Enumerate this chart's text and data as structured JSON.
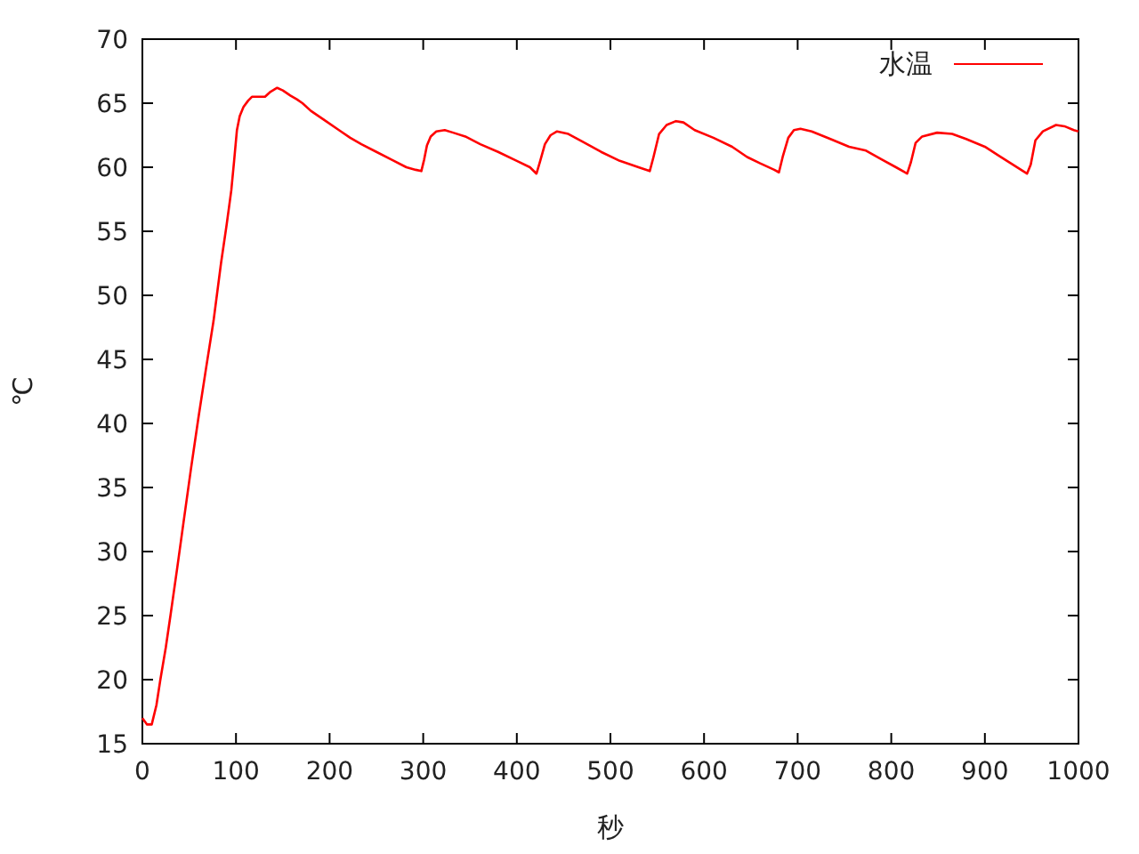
{
  "chart_data": {
    "type": "line",
    "xlabel": "秒",
    "ylabel": "℃",
    "xlim": [
      0,
      1000
    ],
    "ylim": [
      15,
      70
    ],
    "xticks": [
      0,
      100,
      200,
      300,
      400,
      500,
      600,
      700,
      800,
      900,
      1000
    ],
    "yticks": [
      15,
      20,
      25,
      30,
      35,
      40,
      45,
      50,
      55,
      60,
      65,
      70
    ],
    "legend": "top right",
    "grid": false,
    "series": [
      {
        "name": "水温",
        "color": "#ff0000",
        "x": [
          0,
          5,
          10,
          15,
          19,
          25,
          30,
          37,
          44,
          52,
          60,
          68,
          76,
          84,
          90,
          95,
          98,
          101,
          104,
          108,
          113,
          117,
          124,
          131,
          137,
          144,
          150,
          158,
          165,
          171,
          180,
          188,
          196,
          210,
          222,
          234,
          250,
          266,
          282,
          292,
          298,
          301,
          304,
          308,
          314,
          323,
          332,
          345,
          361,
          380,
          400,
          414,
          421,
          425,
          430,
          436,
          443,
          455,
          470,
          490,
          510,
          530,
          542,
          546,
          552,
          560,
          570,
          578,
          590,
          610,
          630,
          646,
          660,
          675,
          680,
          684,
          690,
          696,
          703,
          715,
          735,
          755,
          773,
          790,
          805,
          817,
          821,
          826,
          833,
          849,
          865,
          880,
          900,
          915,
          930,
          945,
          949,
          954,
          962,
          976,
          985,
          995,
          1000
        ],
        "values": [
          17.0,
          16.5,
          16.5,
          18.0,
          19.9,
          22.5,
          25.0,
          28.6,
          32.3,
          36.5,
          40.5,
          44.3,
          48.0,
          52.5,
          55.5,
          58.2,
          60.5,
          62.9,
          64.0,
          64.7,
          65.2,
          65.5,
          65.5,
          65.5,
          65.9,
          66.2,
          66.0,
          65.6,
          65.3,
          65.0,
          64.4,
          64.0,
          63.6,
          62.9,
          62.3,
          61.8,
          61.2,
          60.6,
          60.0,
          59.8,
          59.7,
          60.6,
          61.7,
          62.4,
          62.8,
          62.9,
          62.7,
          62.4,
          61.8,
          61.2,
          60.5,
          60.0,
          59.5,
          60.5,
          61.8,
          62.5,
          62.8,
          62.6,
          62.0,
          61.2,
          60.5,
          60.0,
          59.7,
          60.8,
          62.6,
          63.3,
          63.6,
          63.5,
          62.9,
          62.3,
          61.6,
          60.8,
          60.3,
          59.8,
          59.6,
          60.8,
          62.3,
          62.9,
          63.0,
          62.8,
          62.2,
          61.6,
          61.3,
          60.6,
          60.0,
          59.5,
          60.4,
          61.9,
          62.4,
          62.7,
          62.6,
          62.2,
          61.6,
          60.9,
          60.2,
          59.5,
          60.2,
          62.1,
          62.8,
          63.3,
          63.2,
          62.9,
          62.8
        ]
      }
    ]
  }
}
